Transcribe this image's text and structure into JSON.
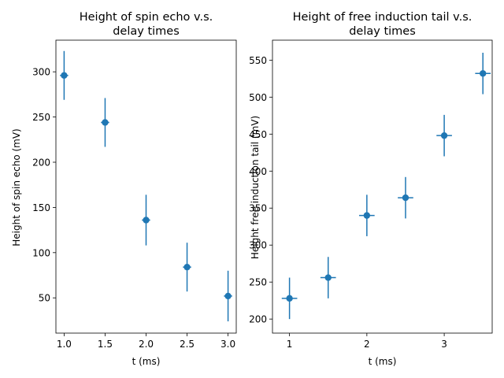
{
  "chart_data": [
    {
      "type": "scatter",
      "title_line1": "Height of spin echo v.s.",
      "title_line2": "delay times",
      "xlabel": "t (ms)",
      "ylabel": "Height of spin echo (mV)",
      "xlim": [
        0.9,
        3.1
      ],
      "ylim": [
        11,
        335
      ],
      "xticks": [
        1.0,
        1.5,
        2.0,
        2.5,
        3.0
      ],
      "xtick_labels": [
        "1.0",
        "1.5",
        "2.0",
        "2.5",
        "3.0"
      ],
      "yticks": [
        50,
        100,
        150,
        200,
        250,
        300
      ],
      "ytick_labels": [
        "50",
        "100",
        "150",
        "200",
        "250",
        "300"
      ],
      "grid": false,
      "series": [
        {
          "x": [
            1.0,
            1.5,
            2.0,
            2.5,
            3.0
          ],
          "y": [
            296,
            244,
            136,
            84,
            52
          ],
          "y_err": [
            27,
            27,
            28,
            27,
            28
          ],
          "x_err": [
            0.05,
            0.05,
            0.05,
            0.05,
            0.05
          ],
          "color": "#1f77b4"
        }
      ]
    },
    {
      "type": "scatter",
      "title_line1": "Height of free induction tail v.s.",
      "title_line2": "delay times",
      "xlabel": "t (ms)",
      "ylabel": "Height free induction tail (mV)",
      "xlim": [
        0.78,
        3.62
      ],
      "ylim": [
        181,
        577
      ],
      "xticks": [
        1,
        2,
        3
      ],
      "xtick_labels": [
        "1",
        "2",
        "3"
      ],
      "yticks": [
        200,
        250,
        300,
        350,
        400,
        450,
        500,
        550
      ],
      "ytick_labels": [
        "200",
        "250",
        "300",
        "350",
        "400",
        "450",
        "500",
        "550"
      ],
      "grid": false,
      "series": [
        {
          "x": [
            1.0,
            1.5,
            2.0,
            2.5,
            3.0,
            3.5
          ],
          "y": [
            228,
            256,
            340,
            364,
            448,
            532
          ],
          "y_err": [
            28,
            28,
            28,
            28,
            28,
            28
          ],
          "x_err": [
            0.1,
            0.1,
            0.1,
            0.1,
            0.1,
            0.1
          ],
          "color": "#1f77b4"
        }
      ]
    }
  ]
}
